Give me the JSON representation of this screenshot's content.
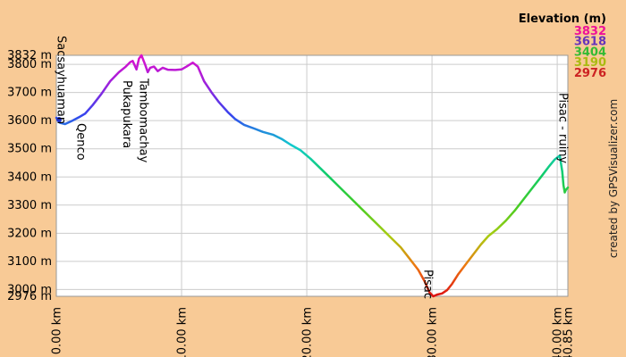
{
  "chart_data": {
    "type": "line",
    "title": "",
    "x_unit": "km",
    "y_unit": "m",
    "xlim": [
      0,
      40.85
    ],
    "ylim": [
      2976,
      3832
    ],
    "grid": true,
    "y_ticks": [
      {
        "m": 3832,
        "label": "3832 m"
      },
      {
        "m": 3800,
        "label": "3800 m"
      },
      {
        "m": 3700,
        "label": "3700 m"
      },
      {
        "m": 3600,
        "label": "3600 m"
      },
      {
        "m": 3500,
        "label": "3500 m"
      },
      {
        "m": 3400,
        "label": "3400 m"
      },
      {
        "m": 3300,
        "label": "3300 m"
      },
      {
        "m": 3200,
        "label": "3200 m"
      },
      {
        "m": 3100,
        "label": "3100 m"
      },
      {
        "m": 3000,
        "label": "3000 m"
      },
      {
        "m": 2976,
        "label": "2976 m"
      }
    ],
    "x_ticks": [
      {
        "km": 0,
        "label": "0.00 km"
      },
      {
        "km": 10,
        "label": "10.00 km"
      },
      {
        "km": 20,
        "label": "20.00 km"
      },
      {
        "km": 30,
        "label": "30.00 km"
      },
      {
        "km": 40,
        "label": "40.00 km"
      },
      {
        "km": 40.85,
        "label": "40.85 km"
      }
    ],
    "waypoints": [
      {
        "label": "Sacsayhuaman",
        "km": 0.05
      },
      {
        "label": "Qenco",
        "km": 1.6
      },
      {
        "label": "Pukapukara",
        "km": 5.3
      },
      {
        "label": "Tambomachay",
        "km": 6.6
      },
      {
        "label": "Pisac",
        "km": 29.3
      },
      {
        "label": "Pisac - ruiny",
        "km": 40.1
      }
    ],
    "profile_km_m": [
      [
        0,
        3610
      ],
      [
        0.3,
        3592
      ],
      [
        0.7,
        3588
      ],
      [
        1.2,
        3598
      ],
      [
        1.8,
        3612
      ],
      [
        2.3,
        3625
      ],
      [
        2.9,
        3655
      ],
      [
        3.6,
        3695
      ],
      [
        4.3,
        3740
      ],
      [
        5,
        3772
      ],
      [
        5.5,
        3790
      ],
      [
        5.9,
        3808
      ],
      [
        6.1,
        3812
      ],
      [
        6.4,
        3782
      ],
      [
        6.6,
        3820
      ],
      [
        6.8,
        3832
      ],
      [
        7.1,
        3798
      ],
      [
        7.3,
        3772
      ],
      [
        7.5,
        3788
      ],
      [
        7.8,
        3792
      ],
      [
        8.1,
        3776
      ],
      [
        8.5,
        3788
      ],
      [
        8.9,
        3781
      ],
      [
        9.5,
        3780
      ],
      [
        10,
        3782
      ],
      [
        10.4,
        3792
      ],
      [
        10.9,
        3806
      ],
      [
        11.3,
        3792
      ],
      [
        11.8,
        3740
      ],
      [
        12.4,
        3700
      ],
      [
        13,
        3665
      ],
      [
        13.7,
        3630
      ],
      [
        14.3,
        3605
      ],
      [
        15,
        3585
      ],
      [
        15.8,
        3572
      ],
      [
        16.5,
        3560
      ],
      [
        17.3,
        3550
      ],
      [
        18,
        3535
      ],
      [
        18.7,
        3515
      ],
      [
        19.5,
        3495
      ],
      [
        20.3,
        3465
      ],
      [
        21.1,
        3430
      ],
      [
        21.9,
        3395
      ],
      [
        22.7,
        3360
      ],
      [
        23.5,
        3325
      ],
      [
        24.3,
        3290
      ],
      [
        25.1,
        3255
      ],
      [
        25.9,
        3220
      ],
      [
        26.7,
        3185
      ],
      [
        27.5,
        3150
      ],
      [
        28.2,
        3110
      ],
      [
        28.9,
        3070
      ],
      [
        29.4,
        3030
      ],
      [
        29.8,
        2990
      ],
      [
        30.1,
        2976
      ],
      [
        30.4,
        2982
      ],
      [
        30.8,
        2986
      ],
      [
        31.2,
        2998
      ],
      [
        31.6,
        3020
      ],
      [
        32.1,
        3055
      ],
      [
        32.7,
        3090
      ],
      [
        33.3,
        3125
      ],
      [
        33.9,
        3160
      ],
      [
        34.5,
        3190
      ],
      [
        35.2,
        3215
      ],
      [
        35.9,
        3245
      ],
      [
        36.6,
        3280
      ],
      [
        37.3,
        3320
      ],
      [
        38,
        3360
      ],
      [
        38.7,
        3400
      ],
      [
        39.3,
        3435
      ],
      [
        39.8,
        3462
      ],
      [
        40.2,
        3476
      ],
      [
        40.4,
        3420
      ],
      [
        40.5,
        3370
      ],
      [
        40.6,
        3345
      ],
      [
        40.7,
        3355
      ],
      [
        40.85,
        3362
      ]
    ],
    "color_scale": [
      [
        2976,
        "#DD1111"
      ],
      [
        3083,
        "#EE7711"
      ],
      [
        3190,
        "#AACC11"
      ],
      [
        3297,
        "#44CC22"
      ],
      [
        3404,
        "#11CC66"
      ],
      [
        3511,
        "#11CCCC"
      ],
      [
        3618,
        "#3344EE"
      ],
      [
        3725,
        "#9922DD"
      ],
      [
        3832,
        "#DD11CC"
      ]
    ]
  },
  "legend": {
    "title": "Elevation (m)",
    "entries": [
      {
        "label": "3832",
        "color": "#EE1199"
      },
      {
        "label": "3618",
        "color": "#6633BB"
      },
      {
        "label": "3404",
        "color": "#33BB33"
      },
      {
        "label": "3190",
        "color": "#AABB11"
      },
      {
        "label": "2976",
        "color": "#CC2222"
      }
    ]
  },
  "credit": "created by GPSVisualizer.com",
  "colors": {
    "margin_bg": "#F8CA96",
    "plot_bg": "#FFFFFF",
    "grid": "#CCCCCC",
    "plot_border": "#999999",
    "start_marker": "#2233CC"
  }
}
